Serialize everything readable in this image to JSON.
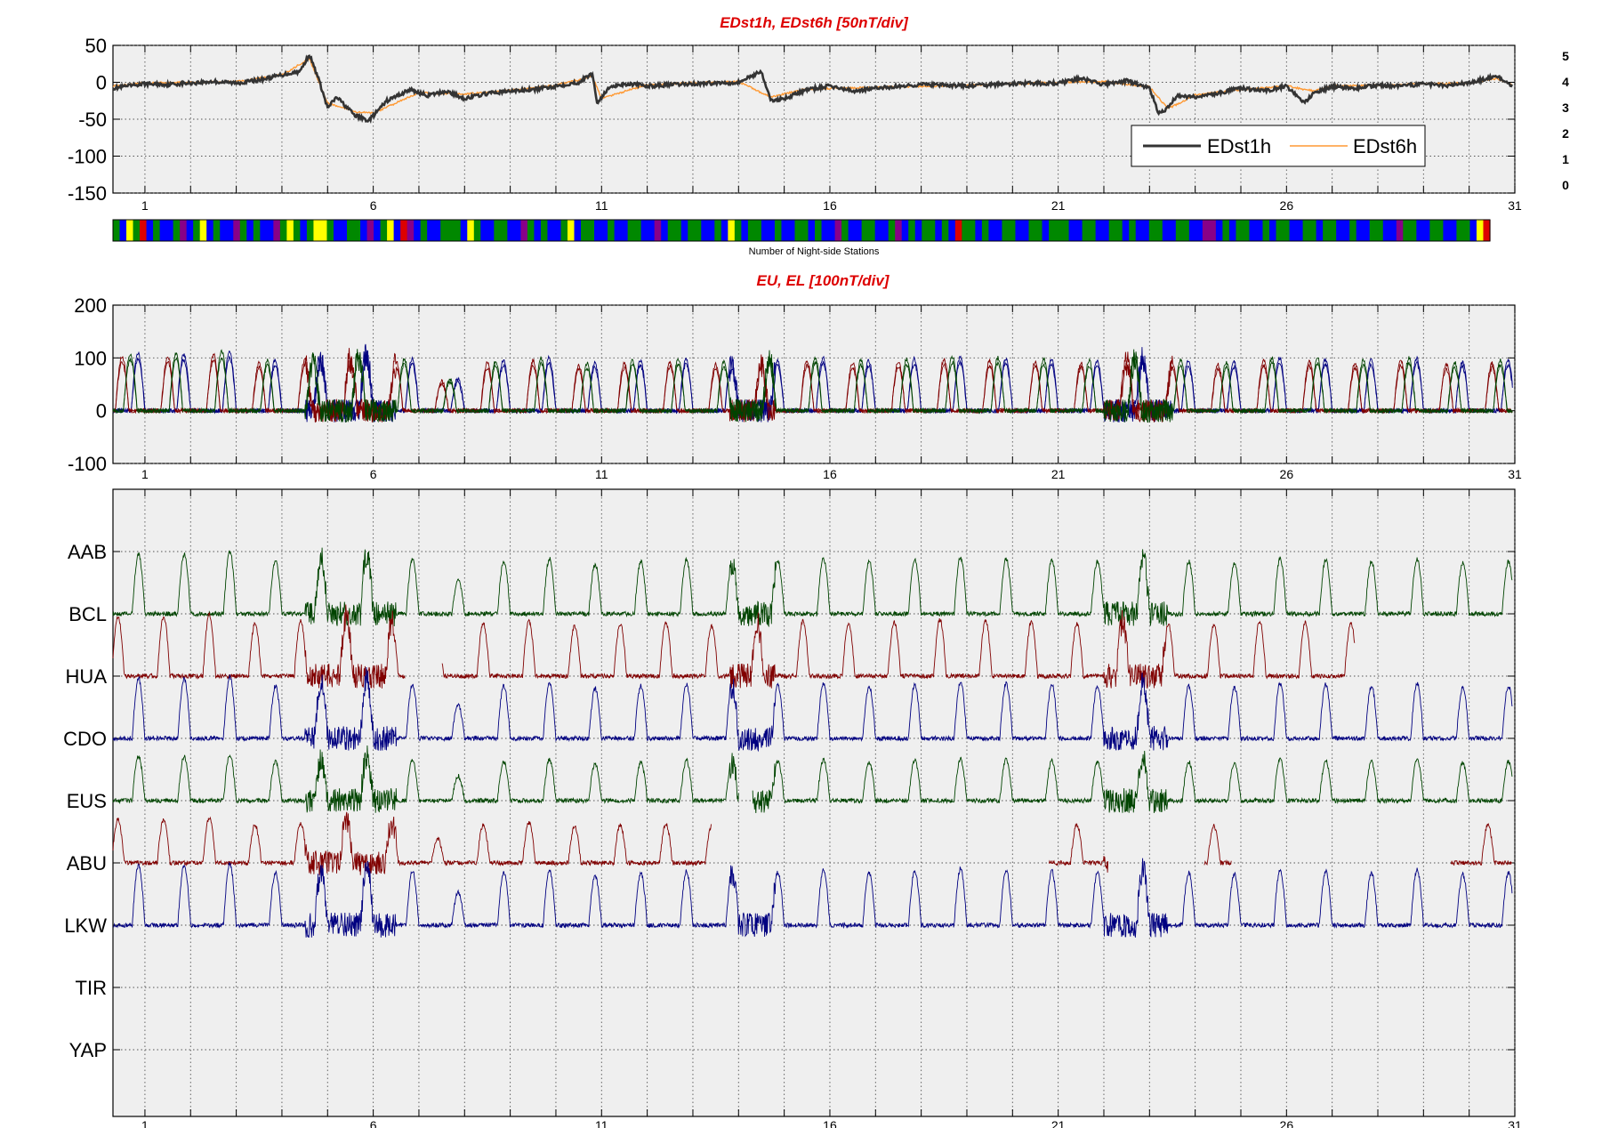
{
  "chart_data": [
    {
      "type": "line",
      "title": "EDst1h, EDst6h [50nT/div]",
      "xlim": [
        0.3,
        31
      ],
      "ylim": [
        -150,
        50
      ],
      "xticks": [
        1,
        6,
        11,
        16,
        21,
        26,
        31
      ],
      "yticks": [
        50,
        0,
        -50,
        -100,
        -150
      ],
      "grid": true,
      "legend_position": "bottom-right",
      "series": [
        {
          "name": "EDst1h",
          "color": "#333333",
          "x": [
            0.3,
            1,
            1.5,
            2,
            2.5,
            3,
            3.5,
            4,
            4.4,
            4.6,
            4.8,
            5,
            5.2,
            5.6,
            5.9,
            6.3,
            6.8,
            7.2,
            7.6,
            8,
            8.5,
            9,
            9.5,
            10,
            10.5,
            10.8,
            10.9,
            11.2,
            11.6,
            12,
            13,
            14,
            14.5,
            14.7,
            15,
            15.5,
            16,
            16.5,
            17,
            18,
            19,
            20,
            21,
            21.5,
            22,
            22.5,
            23,
            23.2,
            23.4,
            23.6,
            24,
            24.5,
            25,
            25.5,
            26,
            26.4,
            26.6,
            27,
            27.5,
            28,
            28.5,
            29,
            29.5,
            30,
            30.6,
            30.95
          ],
          "y": [
            -8,
            -2,
            -3,
            -1,
            1,
            -1,
            3,
            10,
            15,
            38,
            5,
            -35,
            -20,
            -45,
            -52,
            -25,
            -10,
            -18,
            -12,
            -22,
            -15,
            -12,
            -10,
            -5,
            0,
            12,
            -28,
            -5,
            -2,
            -5,
            -2,
            0,
            15,
            -25,
            -22,
            -10,
            -5,
            -12,
            -8,
            -3,
            -5,
            -2,
            -1,
            5,
            -3,
            2,
            -8,
            -42,
            -35,
            -18,
            -20,
            -15,
            -8,
            -12,
            -5,
            -28,
            -15,
            -6,
            -8,
            -4,
            -6,
            -2,
            -4,
            -1,
            8,
            -5
          ]
        },
        {
          "name": "EDst6h",
          "color": "#ff9933",
          "x": [
            0.3,
            1,
            2,
            3,
            4,
            4.6,
            5,
            5.6,
            6,
            7,
            8,
            9,
            10,
            10.8,
            11,
            12,
            13,
            14,
            14.7,
            15.5,
            17,
            19,
            21,
            22,
            23,
            23.4,
            24,
            25,
            26,
            26.6,
            27,
            28,
            29,
            30,
            30.6,
            30.95
          ],
          "y": [
            -5,
            -1,
            0,
            1,
            10,
            32,
            -28,
            -40,
            -42,
            -14,
            -16,
            -11,
            -4,
            8,
            -22,
            -3,
            -1,
            1,
            -20,
            -9,
            -7,
            -4,
            0,
            1,
            -6,
            -36,
            -17,
            -10,
            -5,
            -12,
            -5,
            -4,
            -2,
            -1,
            5,
            -4
          ]
        }
      ]
    },
    {
      "type": "heatmap",
      "xlabel": "Number of Night-side Stations",
      "colorbar_labels": [
        "5",
        "4",
        "3",
        "2",
        "1",
        "0"
      ],
      "colorbar_colors": [
        "#dd0000",
        "#ffff00",
        "#008800",
        "#0000ff",
        "#880088",
        "#000000"
      ],
      "values_by_segment": [
        3,
        2,
        4,
        3,
        5,
        2,
        3,
        2,
        2,
        3,
        1,
        2,
        3,
        4,
        2,
        3,
        2,
        2,
        1,
        3,
        2,
        3,
        2,
        2,
        1,
        3,
        4,
        3,
        2,
        3,
        4,
        4,
        3,
        2,
        2,
        3,
        3,
        2,
        1,
        2,
        3,
        4,
        2,
        5,
        1,
        2,
        3,
        2,
        2,
        3,
        3,
        3,
        2,
        4,
        3,
        2,
        2,
        3,
        3,
        2,
        2,
        1,
        3,
        2,
        3,
        2,
        2,
        3,
        4,
        2,
        3,
        3,
        2,
        2,
        3,
        2,
        2,
        3,
        3,
        2,
        2,
        1,
        2,
        3,
        3,
        2,
        3,
        3,
        2,
        2,
        3,
        2,
        4,
        3,
        2,
        3,
        3,
        2,
        2,
        3,
        2,
        2,
        3,
        3,
        2,
        3,
        2,
        2,
        1,
        3,
        2,
        2,
        3,
        3,
        2,
        2,
        3,
        1,
        2,
        3,
        2,
        3,
        3,
        2,
        3,
        2,
        5,
        3,
        3,
        2,
        3,
        2,
        2,
        3,
        3,
        2,
        2,
        3,
        3,
        2,
        3,
        3,
        3,
        2,
        2,
        3,
        3,
        2,
        2,
        3,
        3,
        2,
        3,
        2,
        2,
        3,
        3,
        2,
        2,
        3,
        3,
        2,
        2,
        1,
        1,
        2,
        3,
        2,
        3,
        3,
        2,
        2,
        3,
        2,
        3,
        3,
        2,
        2,
        3,
        3,
        2,
        3,
        3,
        2,
        2,
        3,
        2,
        2,
        3,
        3,
        2,
        2,
        1,
        3,
        3,
        2,
        2,
        3,
        3,
        2,
        2,
        3,
        3,
        2,
        4,
        5
      ]
    },
    {
      "type": "line",
      "title": "EU, EL   [100nT/div]",
      "xlim": [
        0.3,
        31
      ],
      "ylim": [
        -100,
        200
      ],
      "xticks": [
        1,
        6,
        11,
        16,
        21,
        26,
        31
      ],
      "yticks": [
        200,
        100,
        0,
        -100
      ],
      "grid": true,
      "series_colors": [
        "#000080",
        "#800000",
        "#004400"
      ],
      "daily_peak_amplitude_nT": [
        108,
        112,
        95,
        100,
        108,
        98,
        60,
        95,
        100,
        90,
        95,
        98,
        92,
        96,
        100,
        95,
        98,
        102,
        100,
        98,
        95,
        100,
        95,
        92,
        100,
        98,
        95,
        100,
        92,
        95
      ]
    },
    {
      "type": "line",
      "title": "",
      "xlim": [
        0.3,
        31
      ],
      "xticks": [
        1,
        6,
        11,
        16,
        21,
        26,
        31
      ],
      "grid": true,
      "station_labels": [
        "AAB",
        "BCL",
        "HUA",
        "CDO",
        "EUS",
        "ABU",
        "LKW",
        "TIR",
        "YAP"
      ],
      "trace_colors": [
        "#004400",
        "#800000",
        "#000080"
      ]
    }
  ]
}
